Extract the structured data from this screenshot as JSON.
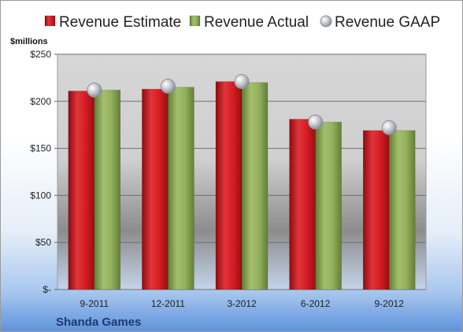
{
  "chart_data": {
    "type": "bar",
    "title": "",
    "company": "Shanda Games",
    "ylabel": "$millions",
    "categories": [
      "9-2011",
      "12-2011",
      "3-2012",
      "6-2012",
      "9-2012"
    ],
    "ylim": [
      0,
      250
    ],
    "yticks": [
      0,
      50,
      100,
      150,
      200,
      250
    ],
    "ytick_labels": [
      "$-",
      "$50",
      "$100",
      "$150",
      "$200",
      "$250"
    ],
    "grid": true,
    "legend_position": "top",
    "series": [
      {
        "name": "Revenue Estimate",
        "type": "bar",
        "color": "#c8161d",
        "values": [
          211,
          213,
          221,
          181,
          169
        ]
      },
      {
        "name": "Revenue Actual",
        "type": "bar",
        "color": "#8aa756",
        "values": [
          212,
          215,
          220,
          178,
          169
        ]
      },
      {
        "name": "Revenue GAAP",
        "type": "marker",
        "color": "#b5b9c0",
        "values": [
          212,
          216,
          221,
          178,
          172
        ]
      }
    ]
  }
}
